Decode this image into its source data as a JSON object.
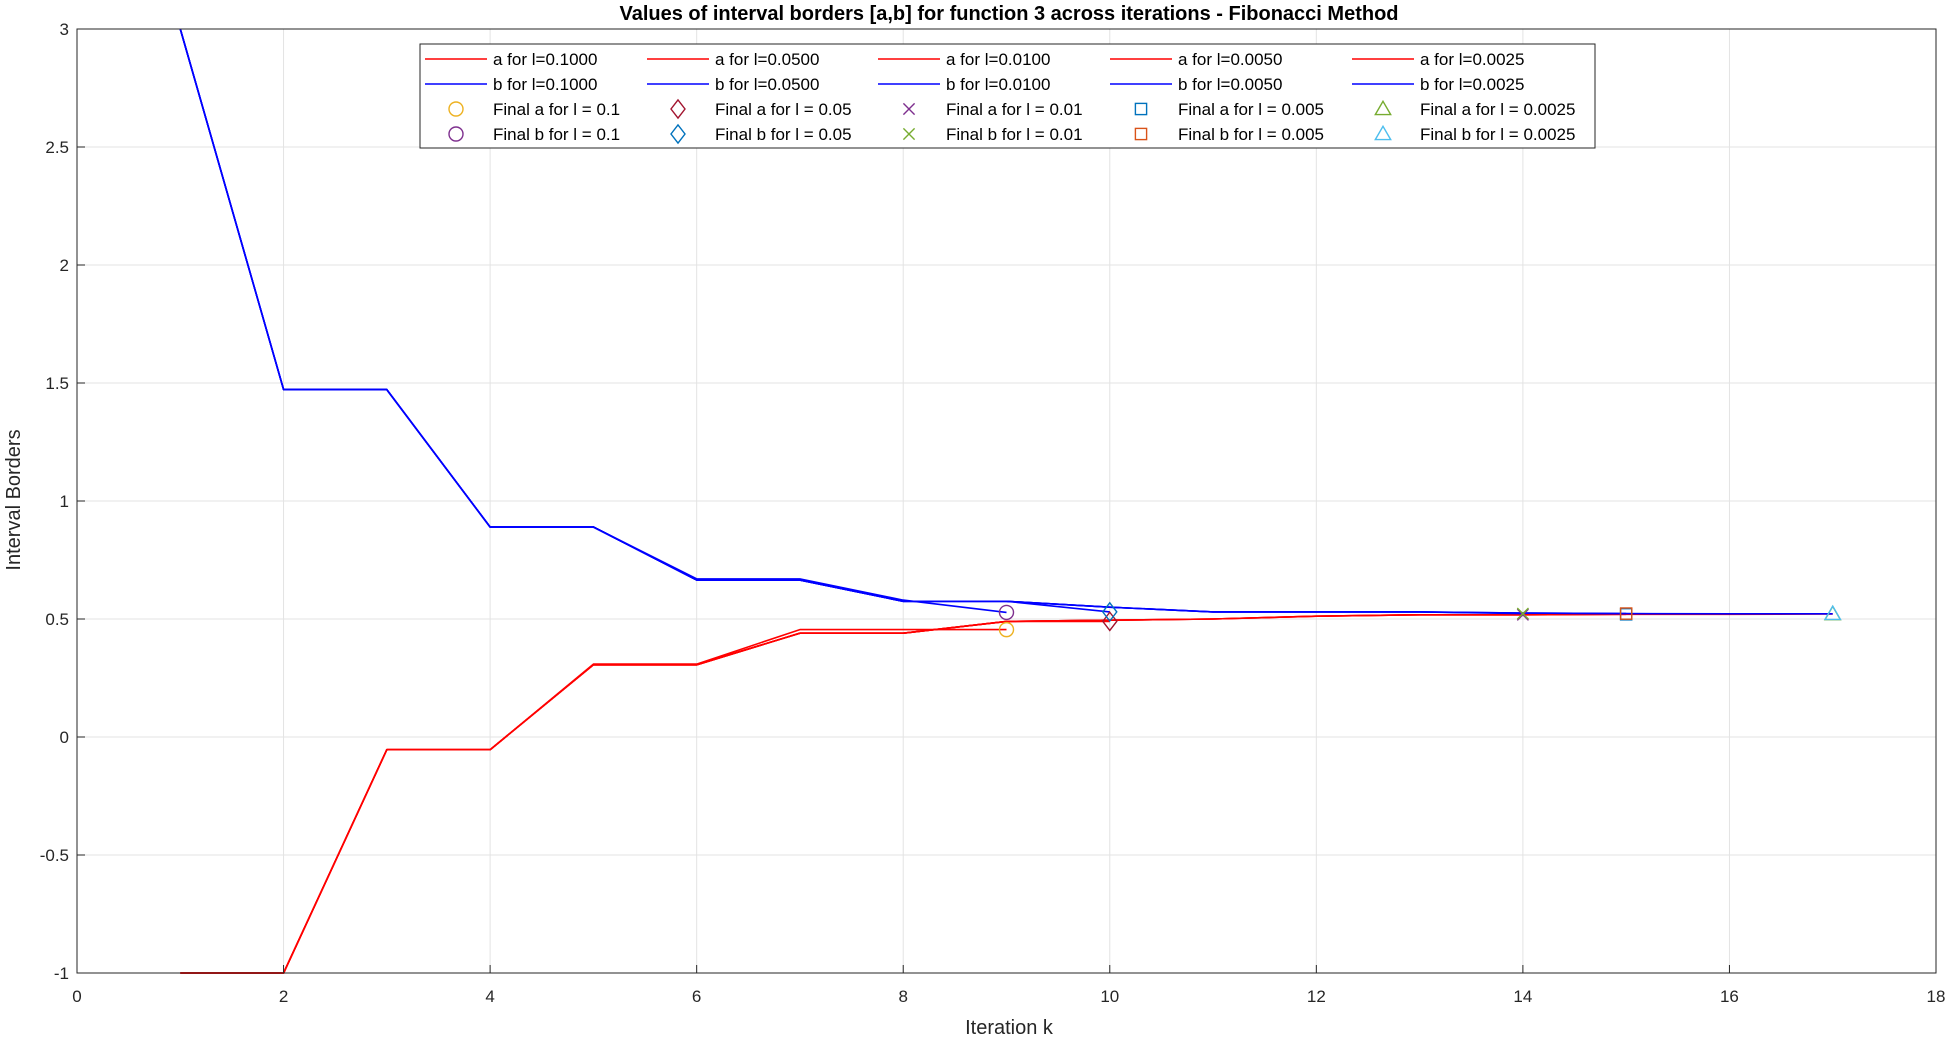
{
  "chart_data": {
    "type": "line",
    "title": "Values of interval borders [a,b] for function 3 across iterations - Fibonacci Method",
    "xlabel": "Iteration k",
    "ylabel": "Interval Borders",
    "xlim": [
      0,
      18
    ],
    "ylim": [
      -1,
      3
    ],
    "xticks": [
      0,
      2,
      4,
      6,
      8,
      10,
      12,
      14,
      16,
      18
    ],
    "yticks": [
      -1,
      -0.5,
      0,
      0.5,
      1,
      1.5,
      2,
      2.5,
      3
    ],
    "xtick_labels": [
      "0",
      "2",
      "4",
      "6",
      "8",
      "10",
      "12",
      "14",
      "16",
      "18"
    ],
    "ytick_labels": [
      "-1",
      "-0.5",
      "0",
      "0.5",
      "1",
      "1.5",
      "2",
      "2.5",
      "3"
    ],
    "grid": true,
    "legend_position": "top-center",
    "colors": {
      "a": "#ff0000",
      "b": "#0000ff"
    },
    "series": [
      {
        "name": "a for l=0.1000",
        "color": "#ff0000",
        "x": [
          1,
          2,
          3,
          4,
          5,
          6,
          7,
          8,
          9
        ],
        "y": [
          -1,
          -1,
          -0.054,
          -0.054,
          0.309,
          0.309,
          0.455,
          0.455,
          0.455
        ]
      },
      {
        "name": "a for l=0.0500",
        "color": "#ff0000",
        "x": [
          1,
          2,
          3,
          4,
          5,
          6,
          7,
          8,
          9,
          10
        ],
        "y": [
          -1,
          -1,
          -0.054,
          -0.054,
          0.306,
          0.306,
          0.44,
          0.44,
          0.49,
          0.49
        ]
      },
      {
        "name": "a for l=0.0100",
        "color": "#ff0000",
        "x": [
          1,
          2,
          3,
          4,
          5,
          6,
          7,
          8,
          9,
          10,
          11,
          12,
          13,
          14
        ],
        "y": [
          -1,
          -1,
          -0.054,
          -0.054,
          0.306,
          0.306,
          0.44,
          0.44,
          0.49,
          0.495,
          0.5,
          0.512,
          0.518,
          0.518
        ]
      },
      {
        "name": "a for l=0.0050",
        "color": "#ff0000",
        "x": [
          1,
          2,
          3,
          4,
          5,
          6,
          7,
          8,
          9,
          10,
          11,
          12,
          13,
          14,
          15
        ],
        "y": [
          -1,
          -1,
          -0.054,
          -0.054,
          0.306,
          0.306,
          0.44,
          0.44,
          0.49,
          0.495,
          0.5,
          0.512,
          0.518,
          0.518,
          0.52
        ]
      },
      {
        "name": "a for l=0.0025",
        "color": "#ff0000",
        "x": [
          1,
          2,
          3,
          4,
          5,
          6,
          7,
          8,
          9,
          10,
          11,
          12,
          13,
          14,
          15,
          16,
          17
        ],
        "y": [
          -1,
          -1,
          -0.054,
          -0.054,
          0.306,
          0.306,
          0.44,
          0.44,
          0.49,
          0.495,
          0.5,
          0.512,
          0.518,
          0.518,
          0.52,
          0.52,
          0.521
        ]
      },
      {
        "name": "b for l=0.1000",
        "color": "#0000ff",
        "x": [
          1,
          2,
          3,
          4,
          5,
          6,
          7,
          8,
          9
        ],
        "y": [
          3,
          1.472,
          1.472,
          0.89,
          0.89,
          0.67,
          0.67,
          0.58,
          0.528
        ]
      },
      {
        "name": "b for l=0.0500",
        "color": "#0000ff",
        "x": [
          1,
          2,
          3,
          4,
          5,
          6,
          7,
          8,
          9,
          10
        ],
        "y": [
          3,
          1.472,
          1.472,
          0.89,
          0.89,
          0.665,
          0.665,
          0.575,
          0.575,
          0.53
        ]
      },
      {
        "name": "b for l=0.0100",
        "color": "#0000ff",
        "x": [
          1,
          2,
          3,
          4,
          5,
          6,
          7,
          8,
          9,
          10,
          11,
          12,
          13,
          14
        ],
        "y": [
          3,
          1.472,
          1.472,
          0.89,
          0.89,
          0.665,
          0.665,
          0.575,
          0.575,
          0.55,
          0.53,
          0.53,
          0.53,
          0.523
        ]
      },
      {
        "name": "b for l=0.0050",
        "color": "#0000ff",
        "x": [
          1,
          2,
          3,
          4,
          5,
          6,
          7,
          8,
          9,
          10,
          11,
          12,
          13,
          14,
          15
        ],
        "y": [
          3,
          1.472,
          1.472,
          0.89,
          0.89,
          0.665,
          0.665,
          0.575,
          0.575,
          0.55,
          0.53,
          0.53,
          0.53,
          0.525,
          0.523
        ]
      },
      {
        "name": "b for l=0.0025",
        "color": "#0000ff",
        "x": [
          1,
          2,
          3,
          4,
          5,
          6,
          7,
          8,
          9,
          10,
          11,
          12,
          13,
          14,
          15,
          16,
          17
        ],
        "y": [
          3,
          1.472,
          1.472,
          0.89,
          0.89,
          0.665,
          0.665,
          0.575,
          0.575,
          0.55,
          0.53,
          0.53,
          0.53,
          0.525,
          0.523,
          0.522,
          0.522
        ]
      }
    ],
    "markers": [
      {
        "name": "Final a for l = 0.1",
        "shape": "circle",
        "color": "#edb120",
        "x": 9,
        "y": 0.455
      },
      {
        "name": "Final b for l = 0.1",
        "shape": "circle",
        "color": "#7e2f8e",
        "x": 9,
        "y": 0.528
      },
      {
        "name": "Final a for l = 0.05",
        "shape": "diamond",
        "color": "#a2142f",
        "x": 10,
        "y": 0.49
      },
      {
        "name": "Final b for l = 0.05",
        "shape": "diamond",
        "color": "#0072bd",
        "x": 10,
        "y": 0.53
      },
      {
        "name": "Final a for l = 0.01",
        "shape": "x",
        "color": "#7e2f8e",
        "x": 14,
        "y": 0.518
      },
      {
        "name": "Final b for l = 0.01",
        "shape": "x",
        "color": "#77ac30",
        "x": 14,
        "y": 0.523
      },
      {
        "name": "Final a for l = 0.005",
        "shape": "square",
        "color": "#0072bd",
        "x": 15,
        "y": 0.52
      },
      {
        "name": "Final b for l = 0.005",
        "shape": "square",
        "color": "#d95319",
        "x": 15,
        "y": 0.523
      },
      {
        "name": "Final a for l = 0.0025",
        "shape": "triangle",
        "color": "#77ac30",
        "x": 17,
        "y": 0.521
      },
      {
        "name": "Final b for l = 0.0025",
        "shape": "triangle",
        "color": "#4dbeee",
        "x": 17,
        "y": 0.522
      }
    ]
  }
}
